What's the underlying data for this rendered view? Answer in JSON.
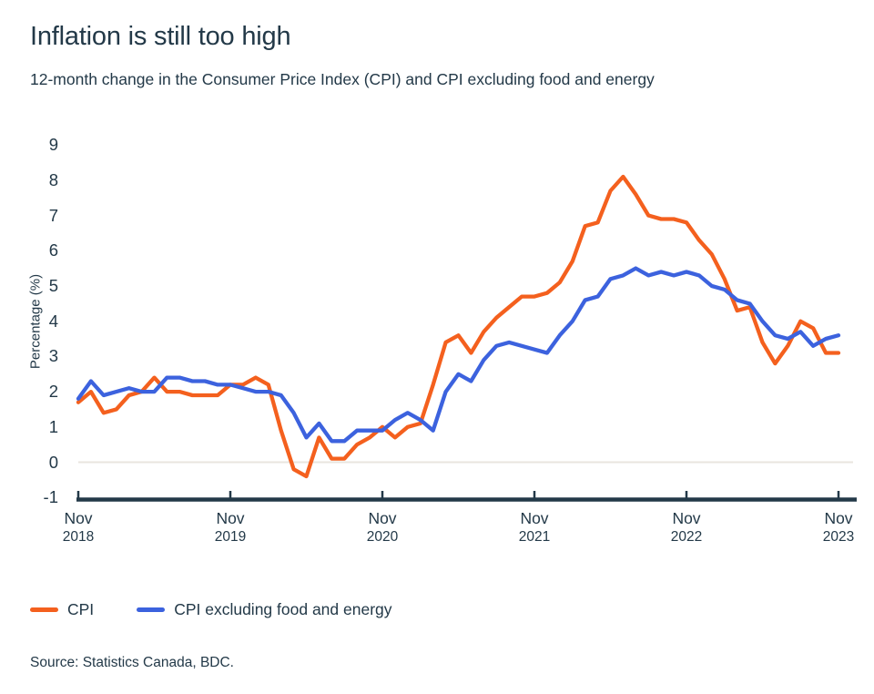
{
  "chart_data": {
    "type": "line",
    "title": "Inflation is still too high",
    "subtitle": "12-month change in the Consumer Price Index (CPI) and CPI excluding food and energy",
    "ylabel": "Percentage (%)",
    "ylim": [
      -1,
      9
    ],
    "yticks": [
      9,
      8,
      7,
      6,
      5,
      4,
      3,
      2,
      1,
      0,
      -1
    ],
    "grid": "horizontal zero line only",
    "legend_position": "bottom-left",
    "x_unit": "monthly",
    "x_start": "Nov 2018",
    "x_end": "Nov 2023",
    "xticks": [
      {
        "month": "Nov",
        "year": "2018"
      },
      {
        "month": "Nov",
        "year": "2019"
      },
      {
        "month": "Nov",
        "year": "2020"
      },
      {
        "month": "Nov",
        "year": "2021"
      },
      {
        "month": "Nov",
        "year": "2022"
      },
      {
        "month": "Nov",
        "year": "2023"
      }
    ],
    "series": [
      {
        "name": "CPI",
        "color": "#f4601e",
        "values": [
          1.7,
          2.0,
          1.4,
          1.5,
          1.9,
          2.0,
          2.4,
          2.0,
          2.0,
          1.9,
          1.9,
          1.9,
          2.2,
          2.2,
          2.4,
          2.2,
          0.9,
          -0.2,
          -0.4,
          0.7,
          0.1,
          0.1,
          0.5,
          0.7,
          1.0,
          0.7,
          1.0,
          1.1,
          2.2,
          3.4,
          3.6,
          3.1,
          3.7,
          4.1,
          4.4,
          4.7,
          4.7,
          4.8,
          5.1,
          5.7,
          6.7,
          6.8,
          7.7,
          8.1,
          7.6,
          7.0,
          6.9,
          6.9,
          6.8,
          6.3,
          5.9,
          5.2,
          4.3,
          4.4,
          3.4,
          2.8,
          3.3,
          4.0,
          3.8,
          3.1,
          3.1
        ]
      },
      {
        "name": "CPI excluding food and energy",
        "color": "#3c62de",
        "values": [
          1.8,
          2.3,
          1.9,
          2.0,
          2.1,
          2.0,
          2.0,
          2.4,
          2.4,
          2.3,
          2.3,
          2.2,
          2.2,
          2.1,
          2.0,
          2.0,
          1.9,
          1.4,
          0.7,
          1.1,
          0.6,
          0.6,
          0.9,
          0.9,
          0.9,
          1.2,
          1.4,
          1.2,
          0.9,
          2.0,
          2.5,
          2.3,
          2.9,
          3.3,
          3.4,
          3.3,
          3.2,
          3.1,
          3.6,
          4.0,
          4.6,
          4.7,
          5.2,
          5.3,
          5.5,
          5.3,
          5.4,
          5.3,
          5.4,
          5.3,
          5.0,
          4.9,
          4.6,
          4.5,
          4.0,
          3.6,
          3.5,
          3.7,
          3.3,
          3.5,
          3.6
        ]
      }
    ]
  },
  "source": "Source: Statistics Canada, BDC.",
  "colors": {
    "text": "#233948",
    "axis": "#233948",
    "zero_line": "#e9e5df",
    "background": "#ffffff"
  }
}
